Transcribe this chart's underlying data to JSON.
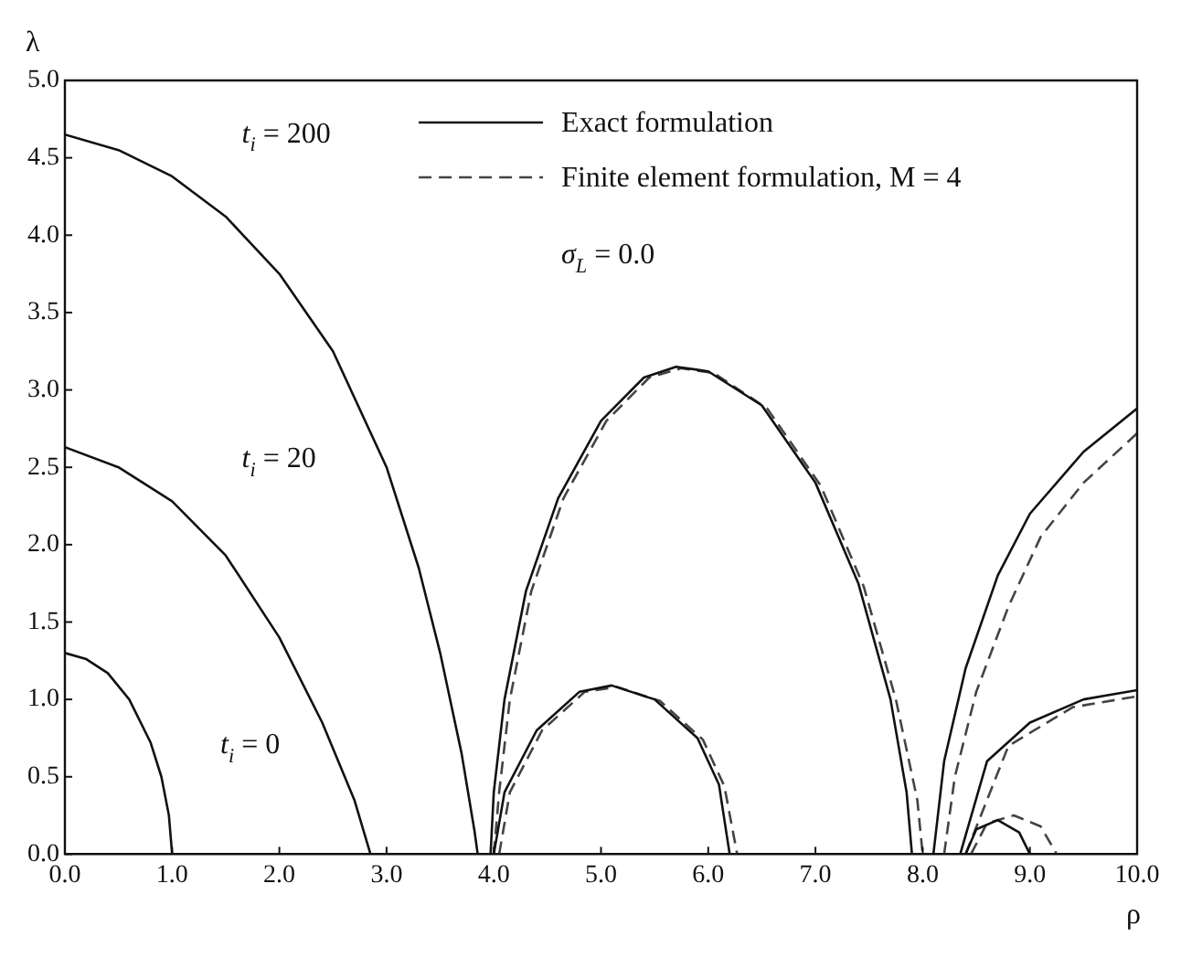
{
  "chart_data": {
    "type": "line",
    "xlabel": "ρ",
    "ylabel": "λ",
    "xlim": [
      0,
      10
    ],
    "ylim": [
      0,
      5
    ],
    "xticks": [
      {
        "value": 0,
        "label": "0.0"
      },
      {
        "value": 1,
        "label": "1.0"
      },
      {
        "value": 2,
        "label": "2.0"
      },
      {
        "value": 3,
        "label": "3.0"
      },
      {
        "value": 4,
        "label": "4.0"
      },
      {
        "value": 5,
        "label": "5.0"
      },
      {
        "value": 6,
        "label": "6.0"
      },
      {
        "value": 7,
        "label": "7.0"
      },
      {
        "value": 8,
        "label": "8.0"
      },
      {
        "value": 9,
        "label": "9.0"
      },
      {
        "value": 10,
        "label": "10.0"
      }
    ],
    "yticks": [
      {
        "value": 0,
        "label": "0.0"
      },
      0.5,
      {
        "value": 1,
        "label": "1.0"
      },
      1.5,
      {
        "value": 2,
        "label": "2.0"
      },
      2.5,
      {
        "value": 3,
        "label": "3.0"
      },
      3.5,
      {
        "value": 4,
        "label": "4.0"
      },
      4.5,
      {
        "value": 5,
        "label": "5.0"
      }
    ],
    "grid": false,
    "legend": "top right",
    "marker": "none",
    "series": [
      {
        "name": "Exact formulation",
        "color": "#111111",
        "line_style": "solid",
        "x": [
          0,
          0.2,
          0.4,
          0.6,
          0.8,
          0.9,
          0.97,
          1.0
        ],
        "values": [
          1.3,
          1.26,
          1.17,
          1.0,
          0.72,
          0.5,
          0.25,
          0
        ]
      },
      {
        "color": "#111111",
        "line_style": "solid",
        "x": [
          0,
          0.5,
          1.0,
          1.5,
          2.0,
          2.4,
          2.7,
          2.85
        ],
        "values": [
          2.63,
          2.5,
          2.28,
          1.93,
          1.4,
          0.85,
          0.35,
          0
        ]
      },
      {
        "color": "#111111",
        "line_style": "solid",
        "x": [
          0,
          0.5,
          1.0,
          1.5,
          2.0,
          2.5,
          3.0,
          3.3,
          3.5,
          3.7,
          3.82,
          3.85
        ],
        "values": [
          4.65,
          4.55,
          4.38,
          4.12,
          3.75,
          3.25,
          2.5,
          1.85,
          1.3,
          0.65,
          0.15,
          0
        ]
      },
      {
        "color": "#111111",
        "line_style": "solid",
        "x": [
          3.97,
          4.0,
          4.1,
          4.3,
          4.6,
          5.0,
          5.4,
          5.7,
          6.0,
          6.5,
          7.0,
          7.4,
          7.7,
          7.85,
          7.9
        ],
        "values": [
          0,
          0.4,
          1.0,
          1.7,
          2.3,
          2.8,
          3.08,
          3.15,
          3.12,
          2.9,
          2.4,
          1.75,
          1.0,
          0.4,
          0
        ]
      },
      {
        "color": "#111111",
        "line_style": "solid",
        "x": [
          4.0,
          4.1,
          4.4,
          4.8,
          5.1,
          5.5,
          5.9,
          6.1,
          6.2
        ],
        "values": [
          0,
          0.4,
          0.8,
          1.05,
          1.09,
          1.0,
          0.75,
          0.45,
          0
        ]
      },
      {
        "color": "#111111",
        "line_style": "solid",
        "x": [
          8.1,
          8.2,
          8.4,
          8.7,
          9.0,
          9.5,
          10
        ],
        "values": [
          0,
          0.6,
          1.2,
          1.8,
          2.2,
          2.6,
          2.88
        ]
      },
      {
        "color": "#111111",
        "line_style": "solid",
        "x": [
          8.35,
          8.6,
          9.0,
          9.5,
          10
        ],
        "values": [
          0,
          0.6,
          0.85,
          1.0,
          1.06
        ]
      },
      {
        "color": "#111111",
        "line_style": "solid",
        "x": [
          8.4,
          8.5,
          8.7,
          8.9,
          9.0
        ],
        "values": [
          0,
          0.16,
          0.22,
          0.14,
          0
        ]
      },
      {
        "name": "Finite element formulation, M = 4",
        "color": "#444444",
        "line_style": "dashed",
        "x": [
          4.0,
          4.05,
          4.15,
          4.35,
          4.65,
          5.05,
          5.45,
          5.75,
          6.05,
          6.55,
          7.05,
          7.45,
          7.75,
          7.95,
          8.0
        ],
        "values": [
          0,
          0.4,
          1.0,
          1.7,
          2.3,
          2.8,
          3.08,
          3.14,
          3.11,
          2.88,
          2.38,
          1.73,
          1.0,
          0.35,
          0
        ]
      },
      {
        "color": "#444444",
        "line_style": "dashed",
        "x": [
          4.05,
          4.15,
          4.45,
          4.85,
          5.15,
          5.55,
          5.95,
          6.15,
          6.27
        ],
        "values": [
          0,
          0.4,
          0.8,
          1.05,
          1.08,
          0.99,
          0.74,
          0.44,
          0
        ]
      },
      {
        "color": "#444444",
        "line_style": "dashed",
        "x": [
          8.2,
          8.3,
          8.5,
          8.8,
          9.1,
          9.5,
          10
        ],
        "values": [
          0,
          0.5,
          1.05,
          1.6,
          2.05,
          2.4,
          2.72
        ]
      },
      {
        "color": "#444444",
        "line_style": "dashed",
        "x": [
          8.4,
          8.8,
          9.4,
          10
        ],
        "values": [
          0,
          0.7,
          0.95,
          1.02
        ]
      },
      {
        "color": "#444444",
        "line_style": "dashed",
        "x": [
          8.45,
          8.6,
          8.85,
          9.1,
          9.25
        ],
        "values": [
          0,
          0.2,
          0.25,
          0.18,
          0
        ]
      }
    ],
    "annotations": [
      "t$_{i}$ = 200",
      "t$_{i}$ = 20",
      "t$_{i}$ = 0",
      "σ$_{L}$ = 0.0"
    ]
  }
}
